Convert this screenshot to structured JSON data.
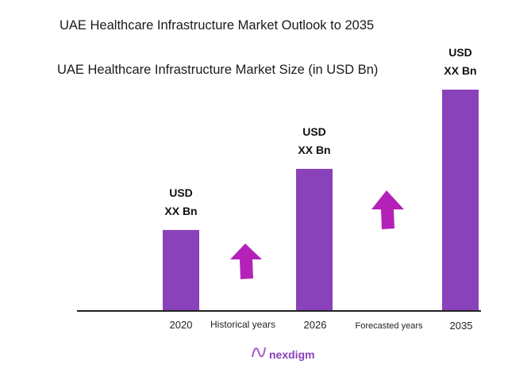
{
  "chart_data": {
    "type": "bar",
    "title": "UAE Healthcare Infrastructure Market Outlook to 2035",
    "subtitle": "UAE Healthcare Infrastructure Market Size (in USD Bn)",
    "categories": [
      "2020",
      "2026",
      "2035"
    ],
    "values": [
      36.6,
      64.2,
      100
    ],
    "value_note": "relative bar heights, 2035 = 100; actual values not shown",
    "data_labels": [
      [
        "USD",
        "XX Bn"
      ],
      [
        "USD",
        "XX Bn"
      ],
      [
        "USD",
        "XX Bn"
      ]
    ],
    "period_labels": [
      "Historical years",
      "Forecasted years"
    ],
    "grid": false,
    "y_axis_shown": false,
    "colors": {
      "bar": "#8a42bb",
      "arrow": "#b321b8",
      "axis": "#222222"
    }
  },
  "branding": {
    "logo_text": "nexdigm",
    "logo_color": "#8a42bb"
  }
}
